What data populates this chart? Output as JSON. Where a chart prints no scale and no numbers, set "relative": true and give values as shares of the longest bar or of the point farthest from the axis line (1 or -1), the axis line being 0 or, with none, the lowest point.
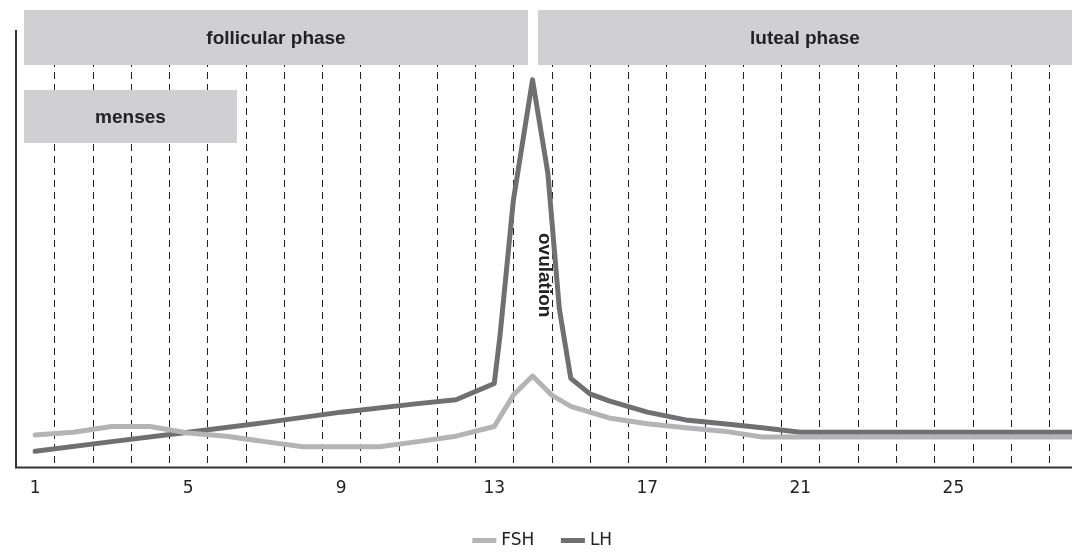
{
  "chart_data": {
    "type": "line",
    "relative": true,
    "xlim": [
      0.5,
      28.1
    ],
    "xticks": [
      1,
      5,
      9,
      13,
      17,
      21,
      25,
      {
        "value": 1.5,
        "label": null
      },
      {
        "value": 2.5,
        "label": null
      },
      {
        "value": 3.5,
        "label": null
      },
      {
        "value": 4.5,
        "label": null
      },
      {
        "value": 5.5,
        "label": null
      },
      {
        "value": 6.5,
        "label": null
      },
      {
        "value": 7.5,
        "label": null
      },
      {
        "value": 8.5,
        "label": null
      },
      {
        "value": 9.5,
        "label": null
      },
      {
        "value": 10.5,
        "label": null
      },
      {
        "value": 11.5,
        "label": null
      },
      {
        "value": 12.5,
        "label": null
      },
      {
        "value": 13.5,
        "label": null
      },
      {
        "value": 14.5,
        "label": null
      },
      {
        "value": 15.5,
        "label": null
      },
      {
        "value": 16.5,
        "label": null
      },
      {
        "value": 17.5,
        "label": null
      },
      {
        "value": 18.5,
        "label": null
      },
      {
        "value": 19.5,
        "label": null
      },
      {
        "value": 20.5,
        "label": null
      },
      {
        "value": 21.5,
        "label": null
      },
      {
        "value": 22.5,
        "label": null
      },
      {
        "value": 23.5,
        "label": null
      },
      {
        "value": 24.5,
        "label": null
      },
      {
        "value": 25.5,
        "label": null
      },
      {
        "value": 26.5,
        "label": null
      },
      {
        "value": 27.5,
        "label": null
      }
    ],
    "grid": "x",
    "legend": "bottom",
    "marker": "none",
    "line_style": "solid",
    "series": [
      {
        "name": "FSH",
        "color": "#b4b4b6",
        "x": [
          1,
          2,
          3,
          4,
          5,
          6,
          7,
          8,
          9,
          10,
          11,
          12,
          13,
          13.5,
          14,
          14.5,
          15,
          16,
          17,
          18,
          19,
          20,
          21,
          22,
          23,
          24,
          25,
          26,
          27,
          28.1
        ],
        "values": [
          0.084,
          0.091,
          0.106,
          0.106,
          0.089,
          0.081,
          0.067,
          0.054,
          0.054,
          0.054,
          0.067,
          0.081,
          0.106,
          0.187,
          0.236,
          0.187,
          0.158,
          0.128,
          0.113,
          0.103,
          0.094,
          0.079,
          0.079,
          0.079,
          0.079,
          0.079,
          0.079,
          0.079,
          0.079,
          0.079
        ]
      },
      {
        "name": "LH",
        "color": "#707072",
        "x": [
          1,
          3,
          5,
          7,
          9,
          11,
          12,
          13,
          13.15,
          13.5,
          14,
          14.4,
          14.7,
          15,
          15.5,
          16,
          17,
          18,
          19,
          20,
          21,
          22,
          23,
          24,
          25,
          26,
          27,
          28.1
        ],
        "values": [
          0.042,
          0.067,
          0.091,
          0.116,
          0.143,
          0.165,
          0.175,
          0.217,
          0.34,
          0.69,
          1,
          0.76,
          0.41,
          0.23,
          0.19,
          0.172,
          0.143,
          0.123,
          0.113,
          0.103,
          0.091,
          0.091,
          0.091,
          0.091,
          0.091,
          0.091,
          0.091,
          0.091
        ]
      }
    ],
    "annotations": [
      "follicular phase",
      "luteal phase",
      "menses",
      "ovulation"
    ]
  }
}
